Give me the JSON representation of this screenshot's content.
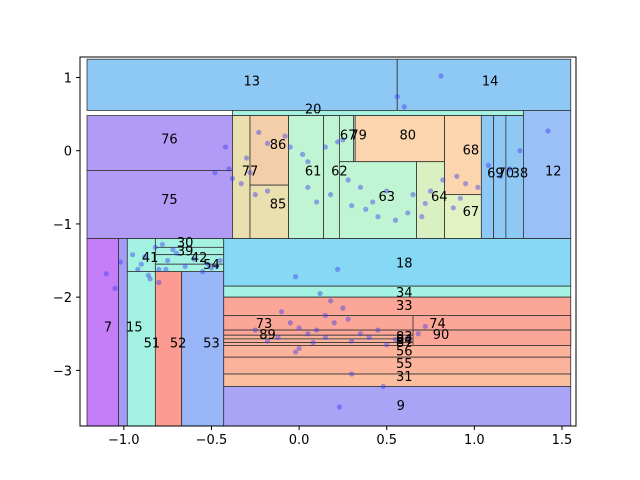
{
  "chart_data": {
    "type": "scatter",
    "title": "",
    "xlabel": "",
    "ylabel": "",
    "xlim": [
      -1.25,
      1.58
    ],
    "ylim": [
      -3.76,
      1.28
    ],
    "xticks": [
      -1.0,
      -0.5,
      0.0,
      0.5,
      1.0,
      1.5
    ],
    "xtick_labels": [
      "−1.0",
      "−0.5",
      "0.0",
      "0.5",
      "1.0",
      "1.5"
    ],
    "yticks": [
      1,
      0,
      -1,
      -2,
      -3
    ],
    "ytick_labels": [
      "1",
      "0",
      "−1",
      "−2",
      "−3"
    ],
    "grid": false,
    "regions": [
      {
        "label": "13",
        "x0": -1.21,
        "x1": 0.56,
        "y0": 0.55,
        "y1": 1.25,
        "color": "#8ec8f4",
        "lx": -0.27,
        "ly": 0.96
      },
      {
        "label": "14",
        "x0": 0.56,
        "x1": 1.55,
        "y0": 0.55,
        "y1": 1.25,
        "color": "#8ec8f4",
        "lx": 1.09,
        "ly": 0.96
      },
      {
        "label": "20",
        "x0": -0.38,
        "x1": 1.3,
        "y0": 0.48,
        "y1": 0.55,
        "color": "#a4f2e2",
        "lx": 0.08,
        "ly": 0.58
      },
      {
        "label": "76",
        "x0": -1.21,
        "x1": -0.38,
        "y0": -0.27,
        "y1": 0.48,
        "color": "#b19bf6",
        "lx": -0.74,
        "ly": 0.17
      },
      {
        "label": "75",
        "x0": -1.21,
        "x1": -0.38,
        "y0": -1.2,
        "y1": -0.27,
        "color": "#b19bf6",
        "lx": -0.74,
        "ly": -0.66
      },
      {
        "label": "77",
        "x0": -0.38,
        "x1": -0.28,
        "y0": -1.2,
        "y1": 0.48,
        "color": "#eadfaf",
        "lx": -0.28,
        "ly": -0.27
      },
      {
        "label": "86",
        "x0": -0.28,
        "x1": -0.06,
        "y0": -0.47,
        "y1": 0.48,
        "color": "#f3cfa9",
        "lx": -0.12,
        "ly": 0.09
      },
      {
        "label": "85",
        "x0": -0.28,
        "x1": -0.06,
        "y0": -1.2,
        "y1": -0.47,
        "color": "#eadfaf",
        "lx": -0.12,
        "ly": -0.72
      },
      {
        "label": "61",
        "x0": -0.06,
        "x1": 0.14,
        "y0": -1.2,
        "y1": 0.48,
        "color": "#c0f5d3",
        "lx": 0.08,
        "ly": -0.27
      },
      {
        "label": "62",
        "x0": 0.14,
        "x1": 0.23,
        "y0": -1.2,
        "y1": 0.48,
        "color": "#c0f5d3",
        "lx": 0.23,
        "ly": -0.27
      },
      {
        "label": "67",
        "x0": 0.23,
        "x1": 0.31,
        "y0": -0.15,
        "y1": 0.48,
        "color": "#c0f5d3",
        "lx": 0.28,
        "ly": 0.22
      },
      {
        "label": "79",
        "x0": 0.31,
        "x1": 0.32,
        "y0": -0.15,
        "y1": 0.48,
        "color": "#c0f5d3",
        "lx": 0.34,
        "ly": 0.22
      },
      {
        "label": "80",
        "x0": 0.32,
        "x1": 0.83,
        "y0": -0.15,
        "y1": 0.48,
        "color": "#fbd5ae",
        "lx": 0.62,
        "ly": 0.22
      },
      {
        "label": "63",
        "x0": 0.23,
        "x1": 0.67,
        "y0": -1.2,
        "y1": -0.15,
        "color": "#c0f5d3",
        "lx": 0.5,
        "ly": -0.62
      },
      {
        "label": "64",
        "x0": 0.67,
        "x1": 0.83,
        "y0": -1.2,
        "y1": -0.15,
        "color": "#d8f0c2",
        "lx": 0.8,
        "ly": -0.62
      },
      {
        "label": "68",
        "x0": 0.83,
        "x1": 1.04,
        "y0": -0.6,
        "y1": 0.48,
        "color": "#fbd5ae",
        "lx": 0.98,
        "ly": 0.02
      },
      {
        "label": "67",
        "x0": 0.83,
        "x1": 1.04,
        "y0": -1.2,
        "y1": -0.6,
        "color": "#e2f2c2",
        "lx": 0.98,
        "ly": -0.82
      },
      {
        "label": "69",
        "x0": 1.04,
        "x1": 1.11,
        "y0": -1.2,
        "y1": 0.48,
        "color": "#8ec8f4",
        "lx": 1.12,
        "ly": -0.3
      },
      {
        "label": "70",
        "x0": 1.11,
        "x1": 1.18,
        "y0": -1.2,
        "y1": 0.48,
        "color": "#8ec8f4",
        "lx": 1.18,
        "ly": -0.3
      },
      {
        "label": "38",
        "x0": 1.18,
        "x1": 1.28,
        "y0": -1.2,
        "y1": 0.48,
        "color": "#8ec8f4",
        "lx": 1.26,
        "ly": -0.3
      },
      {
        "label": "12",
        "x0": 1.28,
        "x1": 1.55,
        "y0": -1.2,
        "y1": 0.55,
        "color": "#99c0f7",
        "lx": 1.45,
        "ly": -0.27
      },
      {
        "label": "7",
        "x0": -1.21,
        "x1": -1.03,
        "y0": -3.76,
        "y1": -1.2,
        "color": "#c57df8",
        "lx": -1.09,
        "ly": -2.4
      },
      {
        "label": "15",
        "x0": -1.03,
        "x1": -0.98,
        "y0": -3.76,
        "y1": -1.2,
        "color": "#a39bf6",
        "lx": -0.94,
        "ly": -2.4
      },
      {
        "label": "51",
        "x0": -0.98,
        "x1": -0.82,
        "y0": -3.76,
        "y1": -1.65,
        "color": "#a4f2e2",
        "lx": -0.84,
        "ly": -2.62
      },
      {
        "label": "52",
        "x0": -0.82,
        "x1": -0.67,
        "y0": -3.76,
        "y1": -1.65,
        "color": "#fb9b92",
        "lx": -0.69,
        "ly": -2.62
      },
      {
        "label": "53",
        "x0": -0.67,
        "x1": -0.43,
        "y0": -3.76,
        "y1": -1.65,
        "color": "#99b6f8",
        "lx": -0.5,
        "ly": -2.62
      },
      {
        "label": "41",
        "x0": -0.98,
        "x1": -0.82,
        "y0": -1.65,
        "y1": -1.2,
        "color": "#a4f2e2",
        "lx": -0.85,
        "ly": -1.45
      },
      {
        "label": "30",
        "x0": -0.82,
        "x1": -0.43,
        "y0": -1.32,
        "y1": -1.2,
        "color": "#a4f2e2",
        "lx": -0.65,
        "ly": -1.25
      },
      {
        "label": "39",
        "x0": -0.82,
        "x1": -0.43,
        "y0": -1.42,
        "y1": -1.32,
        "color": "#a4f2e2",
        "lx": -0.65,
        "ly": -1.36
      },
      {
        "label": "42",
        "x0": -0.82,
        "x1": -0.43,
        "y0": -1.55,
        "y1": -1.42,
        "color": "#a4f2e2",
        "lx": -0.57,
        "ly": -1.45
      },
      {
        "label": "54",
        "x0": -0.82,
        "x1": -0.43,
        "y0": -1.65,
        "y1": -1.55,
        "color": "#a4f2e2",
        "lx": -0.5,
        "ly": -1.55
      },
      {
        "label": "18",
        "x0": -0.43,
        "x1": 1.55,
        "y0": -1.85,
        "y1": -1.2,
        "color": "#86d9f4",
        "lx": 0.6,
        "ly": -1.53
      },
      {
        "label": "34",
        "x0": -0.43,
        "x1": 1.55,
        "y0": -2.0,
        "y1": -1.85,
        "color": "#a4f2e2",
        "lx": 0.6,
        "ly": -1.93
      },
      {
        "label": "33",
        "x0": -0.43,
        "x1": 1.55,
        "y0": -2.25,
        "y1": -2.0,
        "color": "#fba696",
        "lx": 0.6,
        "ly": -2.11
      },
      {
        "label": "73",
        "x0": -0.43,
        "x1": 1.55,
        "y0": -2.45,
        "y1": -2.25,
        "color": "#fba696",
        "lx": -0.2,
        "ly": -2.35
      },
      {
        "label": "74",
        "x0": 0.65,
        "x1": 1.55,
        "y0": -2.45,
        "y1": -2.25,
        "color": "#fba696",
        "lx": 0.79,
        "ly": -2.35
      },
      {
        "label": "89",
        "x0": -0.43,
        "x1": 1.55,
        "y0": -2.52,
        "y1": -2.45,
        "color": "#fba696",
        "lx": -0.18,
        "ly": -2.5
      },
      {
        "label": "83",
        "x0": -0.43,
        "x1": 1.55,
        "y0": -2.57,
        "y1": -2.52,
        "color": "#fbb39c",
        "lx": 0.6,
        "ly": -2.53
      },
      {
        "label": "84",
        "x0": -0.43,
        "x1": 1.55,
        "y0": -2.62,
        "y1": -2.57,
        "color": "#fbb39c",
        "lx": 0.6,
        "ly": -2.57
      },
      {
        "label": "87",
        "x0": -0.43,
        "x1": 1.55,
        "y0": -2.66,
        "y1": -2.62,
        "color": "#fbb39c",
        "lx": 0.6,
        "ly": -2.61
      },
      {
        "label": "90",
        "x0": 0.65,
        "x1": 1.55,
        "y0": -2.66,
        "y1": -2.45,
        "color": "#fba696",
        "lx": 0.81,
        "ly": -2.5
      },
      {
        "label": "56",
        "x0": -0.43,
        "x1": 1.55,
        "y0": -2.82,
        "y1": -2.66,
        "color": "#fbb39c",
        "lx": 0.6,
        "ly": -2.73
      },
      {
        "label": "55",
        "x0": -0.43,
        "x1": 1.55,
        "y0": -3.05,
        "y1": -2.82,
        "color": "#fbb39c",
        "lx": 0.6,
        "ly": -2.9
      },
      {
        "label": "31",
        "x0": -0.43,
        "x1": 1.55,
        "y0": -3.22,
        "y1": -3.05,
        "color": "#fbbe9e",
        "lx": 0.6,
        "ly": -3.08
      },
      {
        "label": "9",
        "x0": -0.43,
        "x1": 1.55,
        "y0": -3.76,
        "y1": -3.22,
        "color": "#a9a4f6",
        "lx": 0.58,
        "ly": -3.47
      }
    ],
    "points": [
      [
        0.81,
        1.02
      ],
      [
        0.56,
        0.74
      ],
      [
        0.6,
        0.6
      ],
      [
        1.42,
        0.27
      ],
      [
        1.26,
        0.0
      ],
      [
        0.22,
        0.12
      ],
      [
        -0.23,
        0.25
      ],
      [
        -0.08,
        0.2
      ],
      [
        -0.18,
        0.1
      ],
      [
        -0.05,
        0.05
      ],
      [
        0.02,
        -0.05
      ],
      [
        0.05,
        -0.15
      ],
      [
        0.15,
        0.05
      ],
      [
        0.25,
        0.15
      ],
      [
        -0.42,
        0.05
      ],
      [
        -0.3,
        -0.1
      ],
      [
        -0.28,
        -0.3
      ],
      [
        -0.33,
        -0.45
      ],
      [
        -0.4,
        -0.25
      ],
      [
        -0.48,
        -0.3
      ],
      [
        -0.38,
        -0.38
      ],
      [
        -0.25,
        -0.6
      ],
      [
        -0.18,
        -0.55
      ],
      [
        0.05,
        -0.5
      ],
      [
        0.1,
        -0.7
      ],
      [
        0.18,
        -0.6
      ],
      [
        0.3,
        -0.75
      ],
      [
        0.38,
        -0.8
      ],
      [
        0.45,
        -0.9
      ],
      [
        0.55,
        -0.95
      ],
      [
        0.62,
        -0.85
      ],
      [
        0.7,
        -0.9
      ],
      [
        0.75,
        -0.55
      ],
      [
        0.82,
        -0.4
      ],
      [
        0.9,
        -0.35
      ],
      [
        0.95,
        -0.45
      ],
      [
        1.02,
        -0.5
      ],
      [
        1.08,
        -0.2
      ],
      [
        1.15,
        -0.35
      ],
      [
        1.2,
        -0.25
      ],
      [
        0.88,
        -0.78
      ],
      [
        0.92,
        -0.65
      ],
      [
        0.65,
        -0.6
      ],
      [
        0.72,
        -0.72
      ],
      [
        0.5,
        -0.55
      ],
      [
        0.42,
        -0.7
      ],
      [
        0.35,
        -0.5
      ],
      [
        0.28,
        -0.4
      ],
      [
        -1.02,
        -1.52
      ],
      [
        -1.05,
        -1.88
      ],
      [
        -1.1,
        -1.68
      ],
      [
        -0.95,
        -1.42
      ],
      [
        -0.9,
        -1.55
      ],
      [
        -0.85,
        -1.75
      ],
      [
        -0.8,
        -1.62
      ],
      [
        -0.75,
        -1.5
      ],
      [
        -0.7,
        -1.4
      ],
      [
        -0.65,
        -1.58
      ],
      [
        -0.6,
        -1.48
      ],
      [
        -0.55,
        -1.65
      ],
      [
        -0.52,
        -1.55
      ],
      [
        -0.5,
        -1.6
      ],
      [
        -0.47,
        -1.58
      ],
      [
        -0.45,
        -1.5
      ],
      [
        -0.82,
        -1.32
      ],
      [
        -0.78,
        -1.28
      ],
      [
        -0.72,
        -1.35
      ],
      [
        -0.88,
        -1.45
      ],
      [
        -0.92,
        -1.62
      ],
      [
        -0.8,
        -1.8
      ],
      [
        -0.86,
        -1.7
      ],
      [
        -0.76,
        -1.62
      ],
      [
        -0.02,
        -1.72
      ],
      [
        0.22,
        -1.62
      ],
      [
        0.12,
        -1.95
      ],
      [
        0.18,
        -2.05
      ],
      [
        0.25,
        -2.15
      ],
      [
        -0.1,
        -2.2
      ],
      [
        -0.05,
        -2.35
      ],
      [
        0.0,
        -2.42
      ],
      [
        0.05,
        -2.5
      ],
      [
        0.1,
        -2.45
      ],
      [
        0.15,
        -2.55
      ],
      [
        0.2,
        -2.35
      ],
      [
        0.28,
        -2.3
      ],
      [
        0.35,
        -2.5
      ],
      [
        0.4,
        -2.55
      ],
      [
        0.45,
        -2.45
      ],
      [
        0.5,
        -2.65
      ],
      [
        -0.12,
        -2.55
      ],
      [
        -0.18,
        -2.6
      ],
      [
        -0.25,
        -2.45
      ],
      [
        0.0,
        -2.7
      ],
      [
        0.08,
        -2.62
      ],
      [
        0.3,
        -2.6
      ],
      [
        0.55,
        -2.58
      ],
      [
        0.72,
        -2.4
      ],
      [
        0.68,
        -2.5
      ],
      [
        0.62,
        -2.55
      ],
      [
        0.48,
        -3.22
      ],
      [
        0.23,
        -3.5
      ],
      [
        0.3,
        -3.05
      ],
      [
        -0.02,
        -2.75
      ],
      [
        0.15,
        -2.25
      ]
    ],
    "point_color": "#3d3df0"
  }
}
